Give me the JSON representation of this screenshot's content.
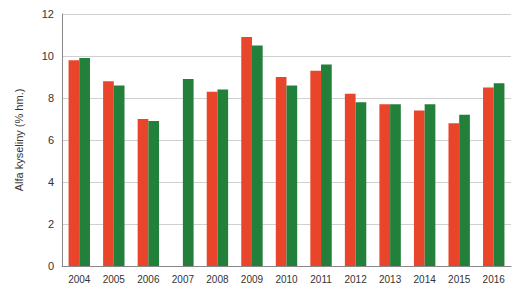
{
  "chart_data": {
    "type": "bar",
    "y_label": "Alfa kyseliny (% hm.)",
    "categories": [
      "2004",
      "2005",
      "2006",
      "2007",
      "2008",
      "2009",
      "2010",
      "2011",
      "2012",
      "2013",
      "2014",
      "2015",
      "2016"
    ],
    "series": [
      {
        "color": "#e8452b",
        "values": [
          9.8,
          8.8,
          7.0,
          null,
          8.3,
          10.9,
          9.0,
          9.3,
          8.2,
          7.7,
          7.4,
          6.8,
          8.5
        ]
      },
      {
        "color": "#23803a",
        "values": [
          9.9,
          8.6,
          6.9,
          8.9,
          8.4,
          10.5,
          8.6,
          9.6,
          7.8,
          7.7,
          7.7,
          7.2,
          8.7
        ]
      }
    ],
    "ylim": [
      0,
      12
    ],
    "yticks": [
      0,
      2,
      4,
      6,
      8,
      10,
      12
    ],
    "grid": true
  }
}
